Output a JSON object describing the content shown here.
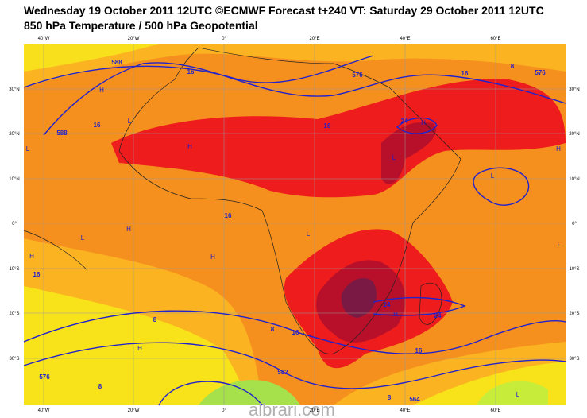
{
  "header": {
    "title_line1": "Wednesday 19 October 2011 12UTC ©ECMWF Forecast t+240 VT: Saturday 29 October 2011 12UTC",
    "title_line2": "850 hPa Temperature / 500 hPa Geopotential"
  },
  "map": {
    "lon_labels": [
      "40°W",
      "20°W",
      "0°",
      "20°E",
      "40°E",
      "60°E"
    ],
    "lat_labels": [
      "30°N",
      "20°N",
      "10°N",
      "0°",
      "10°S",
      "20°S",
      "30°S"
    ],
    "contour_labels": [
      "588",
      "16",
      "576",
      "16",
      "8",
      "576",
      "16",
      "588",
      "16",
      "24",
      "16",
      "16",
      "24",
      "24",
      "8",
      "8",
      "16",
      "16",
      "576",
      "8",
      "582",
      "8",
      "564"
    ],
    "pressure_labels": [
      "L",
      "L",
      "L",
      "L",
      "L",
      "L",
      "L",
      "L",
      "H",
      "H",
      "H",
      "H",
      "H",
      "H",
      "H",
      "H",
      "H"
    ]
  },
  "watermark": "albrari.com"
}
